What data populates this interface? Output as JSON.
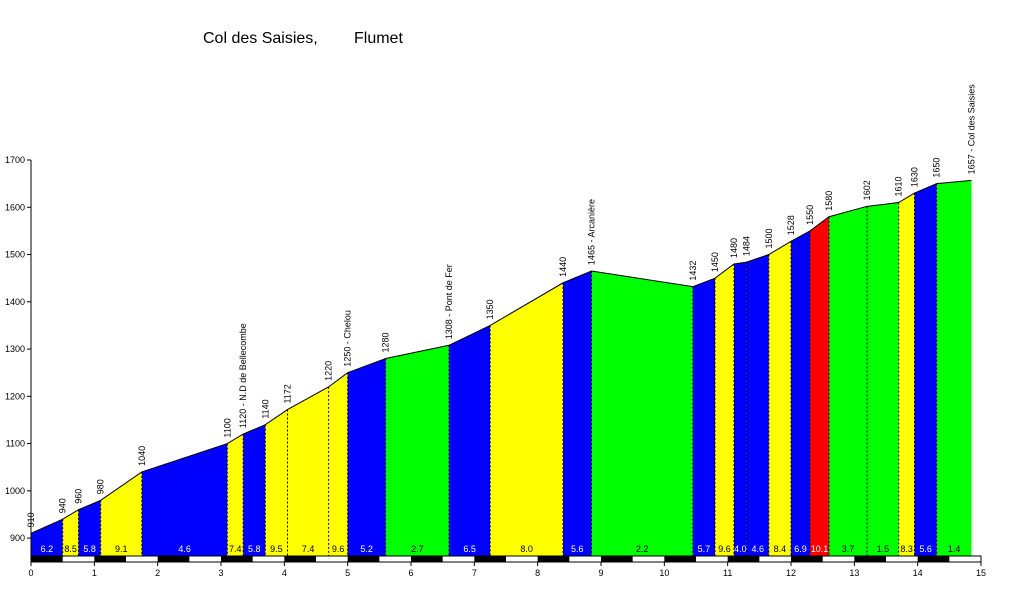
{
  "title": {
    "climb": "Col des Saisies,",
    "start": "Flumet"
  },
  "chart_data": {
    "type": "area",
    "xlim": [
      0,
      15
    ],
    "ylim": [
      860,
      1700
    ],
    "x_ticks": [
      "0",
      "1",
      "2",
      "3",
      "4",
      "5",
      "6",
      "7",
      "8",
      "9",
      "10",
      "11",
      "12",
      "13",
      "14",
      "15"
    ],
    "y_ticks": [
      "900",
      "1000",
      "1100",
      "1200",
      "1300",
      "1400",
      "1500",
      "1600",
      "1700"
    ],
    "profile": [
      {
        "x": 0.0,
        "y": 910,
        "label": "910"
      },
      {
        "x": 0.5,
        "y": 940,
        "label": "940"
      },
      {
        "x": 0.75,
        "y": 960,
        "label": "960"
      },
      {
        "x": 1.1,
        "y": 980,
        "label": "980"
      },
      {
        "x": 1.75,
        "y": 1040,
        "label": "1040"
      },
      {
        "x": 3.1,
        "y": 1100,
        "label": "1100"
      },
      {
        "x": 3.35,
        "y": 1120,
        "label": "1120 - N.D de Bellecombe"
      },
      {
        "x": 3.7,
        "y": 1140,
        "label": "1140"
      },
      {
        "x": 4.05,
        "y": 1172,
        "label": "1172"
      },
      {
        "x": 4.7,
        "y": 1220,
        "label": "1220"
      },
      {
        "x": 5.0,
        "y": 1250,
        "label": "1250 - Chelou"
      },
      {
        "x": 5.6,
        "y": 1280,
        "label": "1280"
      },
      {
        "x": 6.6,
        "y": 1308,
        "label": "1308 - Pont de Fer"
      },
      {
        "x": 7.25,
        "y": 1350,
        "label": "1350"
      },
      {
        "x": 8.4,
        "y": 1440,
        "label": "1440"
      },
      {
        "x": 8.85,
        "y": 1465,
        "label": "1465 - Arcanière"
      },
      {
        "x": 10.45,
        "y": 1432,
        "label": "1432"
      },
      {
        "x": 10.8,
        "y": 1450,
        "label": "1450"
      },
      {
        "x": 11.1,
        "y": 1480,
        "label": "1480"
      },
      {
        "x": 11.3,
        "y": 1484,
        "label": "1484"
      },
      {
        "x": 11.65,
        "y": 1500,
        "label": "1500"
      },
      {
        "x": 12.0,
        "y": 1528,
        "label": "1528"
      },
      {
        "x": 12.3,
        "y": 1550,
        "label": "1550"
      },
      {
        "x": 12.6,
        "y": 1580,
        "label": "1580"
      },
      {
        "x": 13.2,
        "y": 1602,
        "label": "1602"
      },
      {
        "x": 13.7,
        "y": 1610,
        "label": "1610"
      },
      {
        "x": 13.95,
        "y": 1630,
        "label": "1630"
      },
      {
        "x": 14.3,
        "y": 1650,
        "label": "1650"
      },
      {
        "x": 14.85,
        "y": 1657,
        "label": "1657 - Col des Saisies"
      }
    ],
    "segments": [
      {
        "grade": "6.2",
        "color": "#0000ff"
      },
      {
        "grade": "8.5",
        "color": "#ffff00"
      },
      {
        "grade": "5.8",
        "color": "#0000ff"
      },
      {
        "grade": "9.1",
        "color": "#ffff00"
      },
      {
        "grade": "4.6",
        "color": "#0000ff"
      },
      {
        "grade": "7.4",
        "color": "#ffff00"
      },
      {
        "grade": "5.8",
        "color": "#0000ff"
      },
      {
        "grade": "9.5",
        "color": "#ffff00"
      },
      {
        "grade": "7.4",
        "color": "#ffff00"
      },
      {
        "grade": "9.6",
        "color": "#ffff00"
      },
      {
        "grade": "5.2",
        "color": "#0000ff"
      },
      {
        "grade": "2.7",
        "color": "#00ff00"
      },
      {
        "grade": "6.5",
        "color": "#0000ff"
      },
      {
        "grade": "8.0",
        "color": "#ffff00"
      },
      {
        "grade": "5.6",
        "color": "#0000ff"
      },
      {
        "grade": "2.2",
        "color": "#00ff00"
      },
      {
        "grade": "5.7",
        "color": "#0000ff"
      },
      {
        "grade": "9.6",
        "color": "#ffff00"
      },
      {
        "grade": "4.0",
        "color": "#0000ff"
      },
      {
        "grade": "4.6",
        "color": "#0000ff"
      },
      {
        "grade": "8.4",
        "color": "#ffff00"
      },
      {
        "grade": "6.9",
        "color": "#0000ff"
      },
      {
        "grade": "10.1",
        "color": "#ff0000"
      },
      {
        "grade": "3.7",
        "color": "#00ff00"
      },
      {
        "grade": "1.5",
        "color": "#00ff00"
      },
      {
        "grade": "8.3",
        "color": "#ffff00"
      },
      {
        "grade": "5.6",
        "color": "#0000ff"
      },
      {
        "grade": "1.4",
        "color": "#00ff00"
      }
    ]
  }
}
